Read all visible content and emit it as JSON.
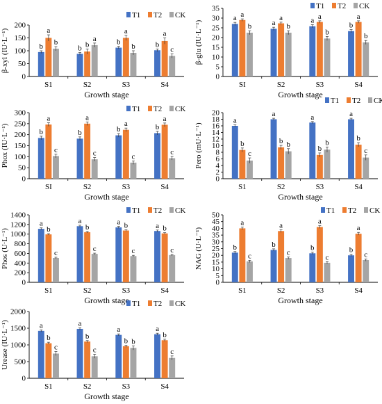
{
  "colors": {
    "T1": "#4472C4",
    "T2": "#ED7D31",
    "CK": "#A5A5A5",
    "axis": "#000000"
  },
  "chart_data": [
    {
      "id": "bxyl",
      "type": "bar",
      "ylabel": "β-xyl (IU·L⁻¹)",
      "xlabel": "Growth stage",
      "ylim": [
        0,
        200
      ],
      "ytick_step": 50,
      "categories": [
        "S1",
        "S2",
        "S3",
        "S4"
      ],
      "legend": [
        "T1",
        "T2",
        "CK"
      ],
      "series": [
        {
          "name": "T1",
          "values": [
            95,
            88,
            112,
            102
          ],
          "errors": [
            5,
            5,
            5,
            5
          ],
          "letters": [
            "b",
            "b",
            "b",
            "b"
          ]
        },
        {
          "name": "T2",
          "values": [
            150,
            97,
            150,
            138
          ],
          "errors": [
            12,
            10,
            10,
            12
          ],
          "letters": [
            "a",
            "b",
            "a",
            "a"
          ]
        },
        {
          "name": "CK",
          "values": [
            108,
            122,
            92,
            80
          ],
          "errors": [
            8,
            8,
            8,
            8
          ],
          "letters": [
            "b",
            "a",
            "b",
            "c"
          ]
        }
      ]
    },
    {
      "id": "bglu",
      "type": "bar",
      "ylabel": "β-glu (IU·L⁻¹)",
      "xlabel": "Growth stage",
      "ylim": [
        0,
        35
      ],
      "ytick_step": 5,
      "categories": [
        "SI",
        "S2",
        "S3",
        "S4"
      ],
      "legend": [
        "T1",
        "T2",
        "CK"
      ],
      "series": [
        {
          "name": "T1",
          "values": [
            27,
            24.5,
            25.8,
            23.3
          ],
          "errors": [
            0.8,
            0.8,
            0.8,
            0.8
          ],
          "letters": [
            "a",
            "a",
            "a",
            "b"
          ]
        },
        {
          "name": "T2",
          "values": [
            29,
            27.3,
            28,
            28
          ],
          "errors": [
            0.6,
            0.6,
            0.6,
            0.6
          ],
          "letters": [
            "a",
            "a",
            "a",
            "a"
          ]
        },
        {
          "name": "CK",
          "values": [
            22.5,
            22.5,
            19.5,
            17.5
          ],
          "errors": [
            1,
            1,
            1,
            1
          ],
          "letters": [
            "b",
            "b",
            "b",
            "b"
          ]
        }
      ]
    },
    {
      "id": "phox",
      "type": "bar",
      "ylabel": "Phox (IU·L⁻¹)",
      "xlabel": "Growth stage",
      "ylim": [
        0,
        300
      ],
      "ytick_step": 50,
      "categories": [
        "SI",
        "S2",
        "S3",
        "S4"
      ],
      "legend": [
        "T1",
        "T2",
        "CK"
      ],
      "series": [
        {
          "name": "T1",
          "values": [
            185,
            182,
            197,
            207
          ],
          "errors": [
            8,
            8,
            8,
            8
          ],
          "letters": [
            "b",
            "b",
            "b",
            "b"
          ]
        },
        {
          "name": "T2",
          "values": [
            246,
            250,
            222,
            245
          ],
          "errors": [
            8,
            8,
            8,
            8
          ],
          "letters": [
            "a",
            "a",
            "a",
            "a"
          ]
        },
        {
          "name": "CK",
          "values": [
            103,
            88,
            73,
            93
          ],
          "errors": [
            8,
            8,
            8,
            8
          ],
          "letters": [
            "c",
            "c",
            "c",
            "c"
          ]
        }
      ]
    },
    {
      "id": "pero",
      "type": "bar",
      "ylabel": "Pero (mU·L⁻¹)",
      "xlabel": "Growth stage",
      "ylim": [
        0,
        20
      ],
      "ytick_step": 2,
      "categories": [
        "S1",
        "S2",
        "S3",
        "S4"
      ],
      "legend": [
        "T1",
        "T2",
        "CK"
      ],
      "series": [
        {
          "name": "T1",
          "values": [
            16,
            18,
            17,
            18
          ],
          "errors": [
            0.3,
            0.3,
            0.3,
            0.3
          ],
          "letters": [
            "a",
            "a",
            "a",
            "a"
          ]
        },
        {
          "name": "T2",
          "values": [
            8.7,
            9.5,
            7.2,
            10.3
          ],
          "errors": [
            0.6,
            0.6,
            0.6,
            0.6
          ],
          "letters": [
            "b",
            "b",
            "b",
            "b"
          ]
        },
        {
          "name": "CK",
          "values": [
            5.5,
            8.3,
            8.8,
            6.4
          ],
          "errors": [
            0.8,
            0.8,
            0.8,
            0.8
          ],
          "letters": [
            "c",
            "b",
            "b",
            "c"
          ]
        }
      ]
    },
    {
      "id": "phos",
      "type": "bar",
      "ylabel": "Phos (U·L⁻¹)",
      "xlabel": "Growth stage",
      "ylim": [
        0,
        1400
      ],
      "ytick_step": 200,
      "categories": [
        "S1",
        "S2",
        "S3",
        "S4"
      ],
      "legend": [
        "T1",
        "T2",
        "CK"
      ],
      "series": [
        {
          "name": "T1",
          "values": [
            1110,
            1165,
            1140,
            1065
          ],
          "errors": [
            20,
            20,
            20,
            20
          ],
          "letters": [
            "a",
            "a",
            "a",
            "a"
          ]
        },
        {
          "name": "T2",
          "values": [
            995,
            1040,
            1075,
            1015
          ],
          "errors": [
            15,
            15,
            15,
            15
          ],
          "letters": [
            "b",
            "b",
            "b",
            "b"
          ]
        },
        {
          "name": "CK",
          "values": [
            505,
            590,
            545,
            565
          ],
          "errors": [
            15,
            15,
            15,
            15
          ],
          "letters": [
            "c",
            "c",
            "c",
            "c"
          ]
        }
      ]
    },
    {
      "id": "nag",
      "type": "bar",
      "ylabel": "NAG (U·L⁻¹)",
      "xlabel": "Growth stage",
      "ylim": [
        0,
        50
      ],
      "ytick_step": 5,
      "categories": [
        "S1",
        "S2",
        "S3",
        "S4"
      ],
      "legend": [
        "T1",
        "T2",
        "CK"
      ],
      "series": [
        {
          "name": "T1",
          "values": [
            22,
            24,
            21.5,
            20
          ],
          "errors": [
            0.8,
            0.8,
            0.8,
            0.8
          ],
          "letters": [
            "b",
            "b",
            "b",
            "b"
          ]
        },
        {
          "name": "T2",
          "values": [
            40,
            38,
            41,
            36
          ],
          "errors": [
            1,
            1,
            1,
            1
          ],
          "letters": [
            "a",
            "a",
            "a",
            "a"
          ]
        },
        {
          "name": "CK",
          "values": [
            15.5,
            18,
            14.5,
            16.5
          ],
          "errors": [
            0.8,
            0.8,
            0.8,
            0.8
          ],
          "letters": [
            "c",
            "c",
            "c",
            "c"
          ]
        }
      ]
    },
    {
      "id": "urease",
      "type": "bar",
      "ylabel": "Urease (IU·L⁻¹)",
      "xlabel": "Growth stage",
      "ylim": [
        0,
        2000
      ],
      "ytick_step": 500,
      "categories": [
        "S1",
        "S2",
        "S3",
        "S4"
      ],
      "legend": [
        "T1",
        "T2",
        "CK"
      ],
      "series": [
        {
          "name": "T1",
          "values": [
            1420,
            1480,
            1300,
            1320
          ],
          "errors": [
            30,
            30,
            30,
            30
          ],
          "letters": [
            "a",
            "a",
            "a",
            "a"
          ]
        },
        {
          "name": "T2",
          "values": [
            1050,
            1100,
            960,
            1140
          ],
          "errors": [
            30,
            30,
            30,
            30
          ],
          "letters": [
            "b",
            "b",
            "b",
            "b"
          ]
        },
        {
          "name": "CK",
          "values": [
            740,
            660,
            910,
            610
          ],
          "errors": [
            60,
            60,
            60,
            60
          ],
          "letters": [
            "c",
            "c",
            "b",
            "c"
          ]
        }
      ]
    }
  ]
}
